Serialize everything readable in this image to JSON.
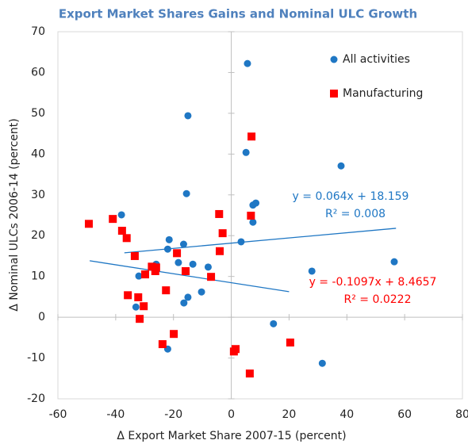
{
  "chart_data": {
    "type": "scatter",
    "title": "Export Market Shares Gains and Nominal ULC Growth",
    "xlabel": "Δ Export Market Share 2007-15  (percent)",
    "ylabel": "Δ Nominal ULCs 2006-14  (percent)",
    "xlim": [
      -60,
      80
    ],
    "xticks": [
      -60,
      -40,
      -20,
      0,
      20,
      40,
      60,
      80
    ],
    "ylim": [
      -20,
      70
    ],
    "yticks": [
      -20,
      -10,
      0,
      10,
      20,
      30,
      40,
      50,
      60,
      70
    ],
    "grid": false,
    "legend": "upper right",
    "series": [
      {
        "name": "All activities",
        "color": "#1f77c4",
        "marker": "circle",
        "x": [
          5.6,
          -15,
          5.1,
          38,
          -15.5,
          7.5,
          8.5,
          -38,
          7.5,
          3.4,
          -21.5,
          -16.5,
          -22,
          -18.3,
          -13.3,
          -26,
          -8,
          27.9,
          56.4,
          -32,
          -15,
          -10.3,
          -16.4,
          -33,
          14.6,
          -22,
          31.5
        ],
        "values": [
          62.2,
          49.4,
          40.4,
          37.1,
          30.3,
          27.5,
          28,
          25.1,
          23.3,
          18.5,
          19,
          17.9,
          16.7,
          13.4,
          13,
          13,
          12.3,
          11.3,
          13.6,
          10.1,
          4.9,
          6.2,
          3.5,
          2.5,
          -1.6,
          -7.8,
          -11.3
        ],
        "trend_slope": 0.064,
        "trend_intercept": 18.159,
        "trend_x": [
          -37,
          57
        ],
        "trend_color": "#1f77c4",
        "equation": "y = 0.064x + 18.159",
        "r2": "R² = 0.008",
        "label_color": "#1f77c4"
      },
      {
        "name": "Manufacturing",
        "color": "#ff0000",
        "marker": "square",
        "x": [
          -49.3,
          -41,
          -37.8,
          -36.2,
          -33.4,
          -26,
          -26.3,
          -27.5,
          -29.8,
          -35.8,
          -32.2,
          -30.3,
          -31.7,
          -22.6,
          -18.8,
          -15.8,
          -7,
          -4.2,
          -3,
          -4,
          7,
          6.8,
          -23.8,
          -19.9,
          0.9,
          1.5,
          6.4,
          20.4
        ],
        "values": [
          22.9,
          24.1,
          21.2,
          19.4,
          15,
          12.2,
          11.3,
          12.4,
          10.5,
          5.4,
          4.9,
          2.7,
          -0.4,
          6.6,
          15.7,
          11.3,
          9.9,
          25.3,
          20.6,
          16.2,
          44.3,
          24.9,
          -6.6,
          -4.1,
          -8.4,
          -7.8,
          -13.8,
          -6.2
        ],
        "trend_slope": -0.1097,
        "trend_intercept": 8.4657,
        "trend_x": [
          -49,
          20
        ],
        "trend_color": "#1f77c4",
        "equation": "y = -0.1097x + 8.4657",
        "r2": "R² = 0.0222",
        "label_color": "#ff0000"
      }
    ]
  }
}
